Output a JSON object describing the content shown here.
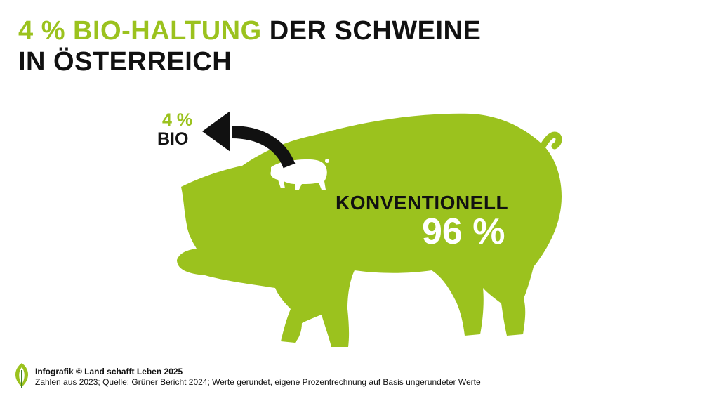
{
  "colors": {
    "accent": "#9bc21e",
    "text": "#111111",
    "pig_fill": "#9bc21e",
    "small_pig_fill": "#ffffff"
  },
  "title": {
    "highlight": "4 % BIO-HALTUNG",
    "rest_line1": " DER SCHWEINE",
    "line2": "IN ÖSTERREICH"
  },
  "figure": {
    "bio_percent": "4 %",
    "bio_label": "BIO",
    "conventional_label": "KONVENTIONELL",
    "conventional_percent": "96 %",
    "bio_share": 0.04,
    "conventional_share": 0.96,
    "icons": [
      "pig-icon",
      "small-pig-icon",
      "arrow-icon"
    ]
  },
  "footer": {
    "credit": "Infografik © Land schafft Leben 2025",
    "source": "Zahlen aus 2023; Quelle: Grüner Bericht 2024; Werte gerundet, eigene Prozentrechnung auf Basis ungerundeter Werte",
    "logo_icon": "leaf-logo-icon"
  }
}
